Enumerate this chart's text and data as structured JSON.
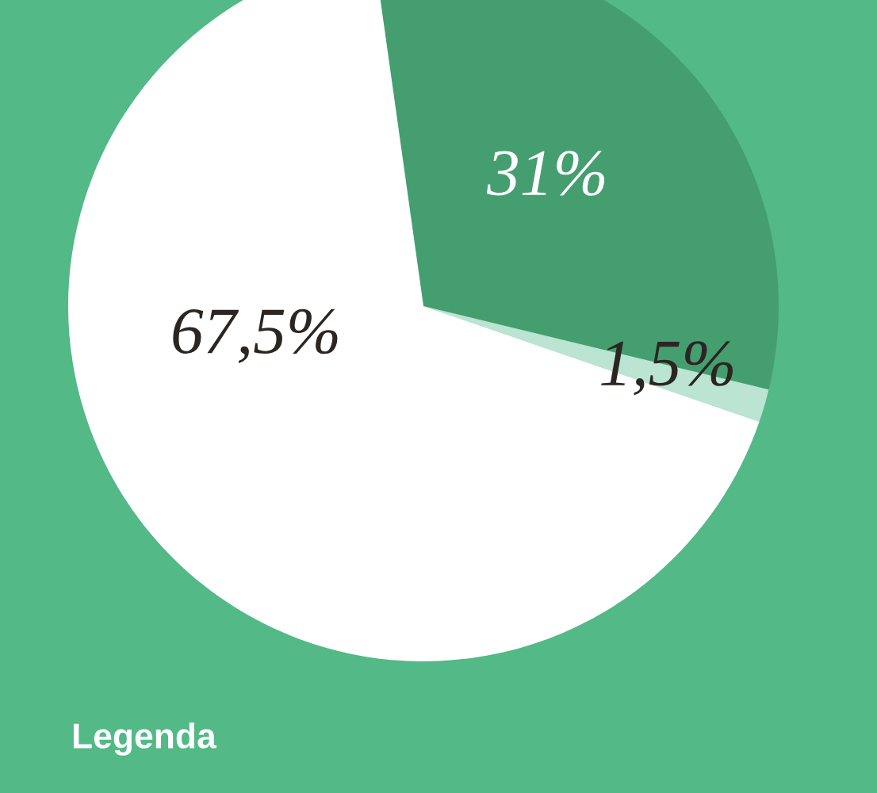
{
  "chart_data": {
    "type": "pie",
    "categories": [
      null,
      null,
      null
    ],
    "values": [
      31,
      1.5,
      67.5
    ],
    "colors": [
      "#459e6f",
      "#bbe4d2",
      "#ffffff"
    ],
    "value_labels": [
      "31%",
      "1,5%",
      "67,5%"
    ],
    "annotations": [
      "Legenda"
    ]
  }
}
